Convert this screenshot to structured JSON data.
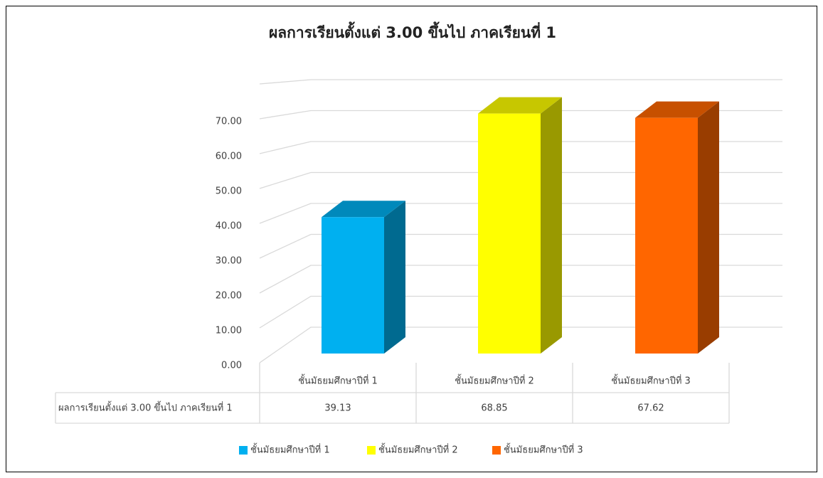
{
  "chart_data": {
    "type": "bar3d",
    "title": "ผลการเรียนตั้งแต่ 3.00 ขึ้นไป ภาคเรียนที่ 1",
    "categories": [
      "ชั้นมัธยมศึกษาปีที่ 1",
      "ชั้นมัธยมศึกษาปีที่ 2",
      "ชั้นมัธยมศึกษาปีที่ 3"
    ],
    "colors": [
      "#00b0f0",
      "#ffff00",
      "#ff6600"
    ],
    "series": [
      {
        "name": "ผลการเรียนตั้งแต่ 3.00 ขึ้นไป ภาคเรียนที่ 1",
        "values": [
          39.13,
          68.85,
          67.62
        ]
      }
    ],
    "ylim": [
      0,
      80
    ],
    "yticks": [
      {
        "value": 0,
        "label": "0.00"
      },
      {
        "value": 10,
        "label": "10.00"
      },
      {
        "value": 20,
        "label": "20.00"
      },
      {
        "value": 30,
        "label": "30.00"
      },
      {
        "value": 40,
        "label": "40.00"
      },
      {
        "value": 50,
        "label": "50.00"
      },
      {
        "value": 60,
        "label": "60.00"
      },
      {
        "value": 70,
        "label": "70.00"
      }
    ],
    "grid": true,
    "legend": "bottom",
    "data_table": true
  }
}
